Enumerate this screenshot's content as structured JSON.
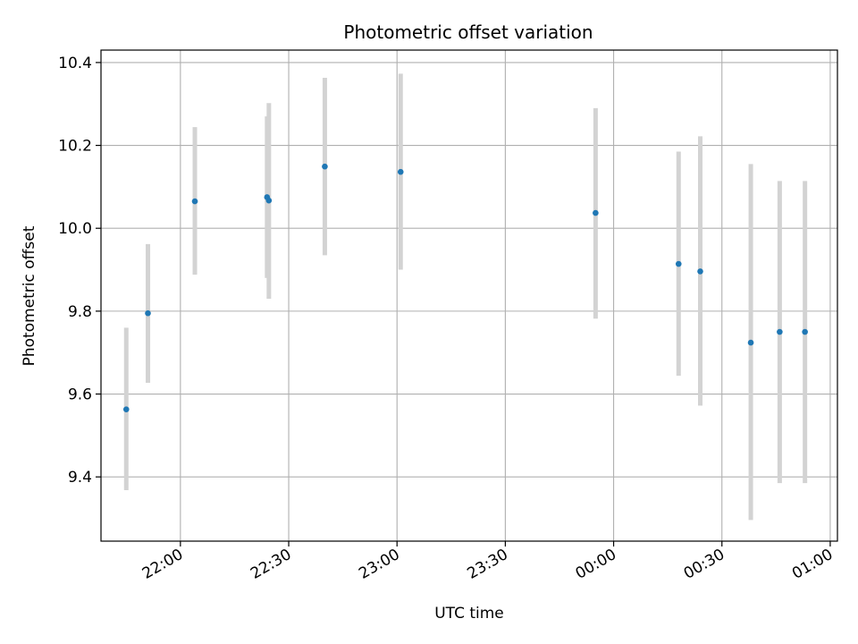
{
  "chart_data": {
    "type": "scatter",
    "title": "Photometric offset variation",
    "xlabel": "UTC time",
    "ylabel": "Photometric offset",
    "x_unit": "time of night (HH:MM, UTC); points after midnight belong to the next day",
    "xlim": [
      "21:38",
      "01:02"
    ],
    "ylim": [
      9.245,
      10.43
    ],
    "grid": true,
    "x_ticks": [
      "22:00",
      "22:30",
      "23:00",
      "23:30",
      "00:00",
      "00:30",
      "01:00"
    ],
    "y_ticks": [
      9.4,
      9.6,
      9.8,
      10.0,
      10.2,
      10.4
    ],
    "y_tick_labels": [
      "9.4",
      "9.6",
      "9.8",
      "10.0",
      "10.2",
      "10.4"
    ],
    "marker_color": "#1f77b4",
    "errorbar_color": "#d3d3d3",
    "points": [
      {
        "time": "21:45",
        "y": 9.563,
        "yerr_low": 9.368,
        "yerr_high": 9.76
      },
      {
        "time": "21:51",
        "y": 9.795,
        "yerr_low": 9.627,
        "yerr_high": 9.962
      },
      {
        "time": "22:04",
        "y": 10.065,
        "yerr_low": 9.888,
        "yerr_high": 10.244
      },
      {
        "time": "22:24",
        "y": 10.075,
        "yerr_low": 9.88,
        "yerr_high": 10.27
      },
      {
        "time": "22:24.5",
        "y": 10.067,
        "yerr_low": 9.83,
        "yerr_high": 10.302
      },
      {
        "time": "22:40",
        "y": 10.149,
        "yerr_low": 9.935,
        "yerr_high": 10.363
      },
      {
        "time": "23:01",
        "y": 10.136,
        "yerr_low": 9.9,
        "yerr_high": 10.373
      },
      {
        "time": "23:55",
        "y": 10.037,
        "yerr_low": 9.782,
        "yerr_high": 10.29
      },
      {
        "time": "00:18",
        "y": 9.914,
        "yerr_low": 9.644,
        "yerr_high": 10.185
      },
      {
        "time": "00:24",
        "y": 9.896,
        "yerr_low": 9.572,
        "yerr_high": 10.222
      },
      {
        "time": "00:38",
        "y": 9.724,
        "yerr_low": 9.296,
        "yerr_high": 10.155
      },
      {
        "time": "00:46",
        "y": 9.75,
        "yerr_low": 9.385,
        "yerr_high": 10.114
      },
      {
        "time": "00:53",
        "y": 9.75,
        "yerr_low": 9.385,
        "yerr_high": 10.114
      }
    ]
  }
}
